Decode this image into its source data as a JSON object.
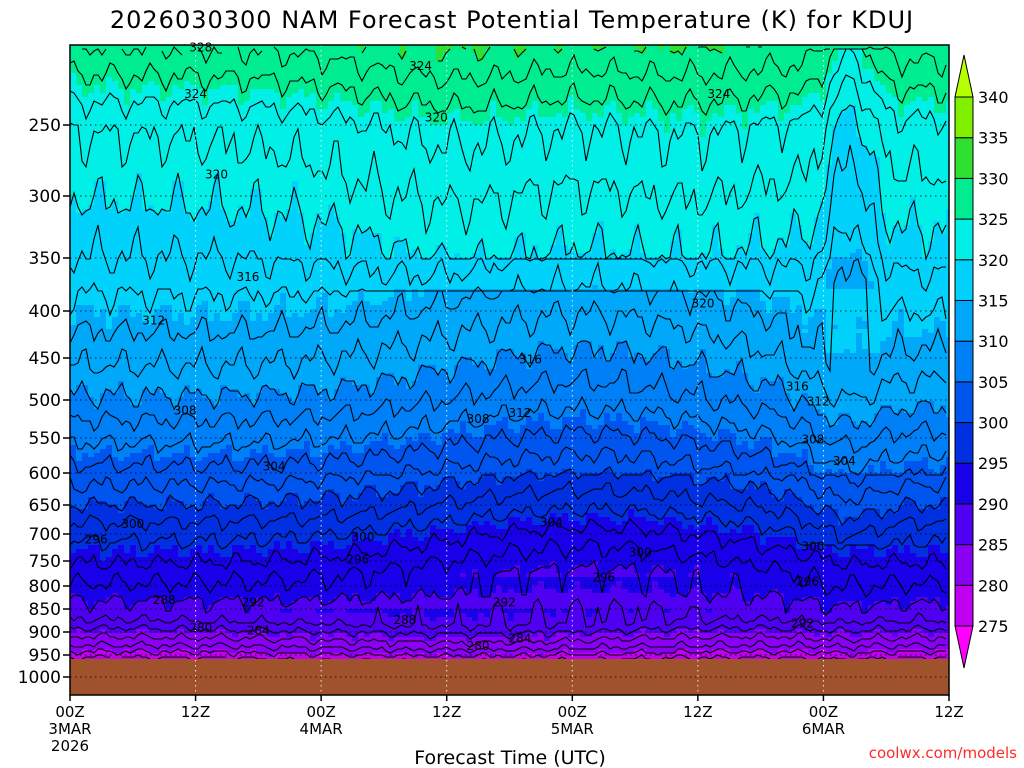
{
  "chart_data": {
    "type": "heatmap",
    "title": "2026030300 NAM Forecast Potential Temperature (K) for KDUJ",
    "xlabel": "Forecast Time (UTC)",
    "ylabel": "",
    "y_ticks": [
      "250",
      "300",
      "350",
      "400",
      "450",
      "500",
      "550",
      "600",
      "650",
      "700",
      "750",
      "800",
      "850",
      "900",
      "950",
      "1000"
    ],
    "y_tick_values": [
      250,
      300,
      350,
      400,
      450,
      500,
      550,
      600,
      650,
      700,
      750,
      800,
      850,
      900,
      950,
      1000
    ],
    "x_ticks": [
      {
        "hour": 0,
        "line1": "00Z",
        "line2": "3MAR",
        "line3": "2026"
      },
      {
        "hour": 12,
        "line1": "12Z",
        "line2": "",
        "line3": ""
      },
      {
        "hour": 24,
        "line1": "00Z",
        "line2": "4MAR",
        "line3": ""
      },
      {
        "hour": 36,
        "line1": "12Z",
        "line2": "",
        "line3": ""
      },
      {
        "hour": 48,
        "line1": "00Z",
        "line2": "5MAR",
        "line3": ""
      },
      {
        "hour": 60,
        "line1": "12Z",
        "line2": "",
        "line3": ""
      },
      {
        "hour": 72,
        "line1": "00Z",
        "line2": "6MAR",
        "line3": ""
      },
      {
        "hour": 84,
        "line1": "12Z",
        "line2": "",
        "line3": ""
      }
    ],
    "x_range_hours": [
      0,
      84
    ],
    "colorbar": {
      "units": "K",
      "levels": [
        275,
        280,
        285,
        290,
        295,
        300,
        305,
        310,
        315,
        320,
        325,
        330,
        335,
        340
      ],
      "colors": [
        "#ff00ff",
        "#c000f0",
        "#8a00f5",
        "#5000f0",
        "#1800e8",
        "#0030e0",
        "#0055ee",
        "#0080f6",
        "#00a8fa",
        "#00d2fc",
        "#00f0e8",
        "#00ec90",
        "#30e030",
        "#80f000",
        "#b8ff00"
      ]
    },
    "contour_interval": 2,
    "surface_pressure_hpa": 960,
    "contour_labels": [
      {
        "t": 12.5,
        "p": 200,
        "text": "328"
      },
      {
        "t": 12.0,
        "p": 230,
        "text": "324"
      },
      {
        "t": 33.5,
        "p": 212,
        "text": "324"
      },
      {
        "t": 35.0,
        "p": 245,
        "text": "320"
      },
      {
        "t": 62.0,
        "p": 230,
        "text": "324"
      },
      {
        "t": 14.0,
        "p": 285,
        "text": "320"
      },
      {
        "t": 17.0,
        "p": 368,
        "text": "316"
      },
      {
        "t": 60.5,
        "p": 393,
        "text": "320"
      },
      {
        "t": 8.0,
        "p": 410,
        "text": "312"
      },
      {
        "t": 44.0,
        "p": 452,
        "text": "316"
      },
      {
        "t": 69.5,
        "p": 484,
        "text": "316"
      },
      {
        "t": 11.0,
        "p": 514,
        "text": "308"
      },
      {
        "t": 39.0,
        "p": 525,
        "text": "308"
      },
      {
        "t": 43.0,
        "p": 517,
        "text": "312"
      },
      {
        "t": 71.5,
        "p": 502,
        "text": "312"
      },
      {
        "t": 71.0,
        "p": 552,
        "text": "308"
      },
      {
        "t": 19.5,
        "p": 591,
        "text": "304"
      },
      {
        "t": 74.0,
        "p": 583,
        "text": "304"
      },
      {
        "t": 6.0,
        "p": 683,
        "text": "300"
      },
      {
        "t": 46.0,
        "p": 680,
        "text": "304"
      },
      {
        "t": 2.5,
        "p": 710,
        "text": "296"
      },
      {
        "t": 28.0,
        "p": 706,
        "text": "300"
      },
      {
        "t": 27.5,
        "p": 747,
        "text": "296"
      },
      {
        "t": 54.5,
        "p": 734,
        "text": "300"
      },
      {
        "t": 71.0,
        "p": 723,
        "text": "300"
      },
      {
        "t": 51.0,
        "p": 783,
        "text": "296"
      },
      {
        "t": 70.5,
        "p": 791,
        "text": "296"
      },
      {
        "t": 9.0,
        "p": 830,
        "text": "288"
      },
      {
        "t": 17.5,
        "p": 836,
        "text": "292"
      },
      {
        "t": 41.5,
        "p": 836,
        "text": "292"
      },
      {
        "t": 32.0,
        "p": 874,
        "text": "288"
      },
      {
        "t": 70.0,
        "p": 881,
        "text": "292"
      },
      {
        "t": 12.5,
        "p": 891,
        "text": "280"
      },
      {
        "t": 18.0,
        "p": 897,
        "text": "284"
      },
      {
        "t": 43.0,
        "p": 914,
        "text": "284"
      },
      {
        "t": 39.0,
        "p": 930,
        "text": "280"
      }
    ]
  },
  "watermark": "coolwx.com/models"
}
